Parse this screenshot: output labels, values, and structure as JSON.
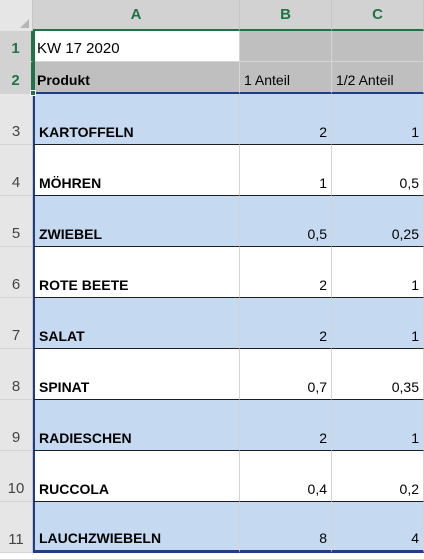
{
  "columns": [
    "A",
    "B",
    "C"
  ],
  "title_cell": "KW 17 2020",
  "header": {
    "produkt": "Produkt",
    "b": "1 Anteil",
    "c": "1/2 Anteil"
  },
  "rows": [
    {
      "num": "3",
      "produkt": "KARTOFFELN",
      "b": "2",
      "c": "1"
    },
    {
      "num": "4",
      "produkt": "MÖHREN",
      "b": "1",
      "c": "0,5"
    },
    {
      "num": "5",
      "produkt": "ZWIEBEL",
      "b": "0,5",
      "c": "0,25"
    },
    {
      "num": "6",
      "produkt": "ROTE BEETE",
      "b": "2",
      "c": "1"
    },
    {
      "num": "7",
      "produkt": "SALAT",
      "b": "2",
      "c": "1"
    },
    {
      "num": "8",
      "produkt": "SPINAT",
      "b": "0,7",
      "c": "0,35"
    },
    {
      "num": "9",
      "produkt": "RADIESCHEN",
      "b": "2",
      "c": "1"
    },
    {
      "num": "10",
      "produkt": "RUCCOLA",
      "b": "0,4",
      "c": "0,2"
    },
    {
      "num": "11",
      "produkt": "LAUCHZWIEBELN",
      "b": "8",
      "c": "4"
    }
  ],
  "row_numbers_top": [
    "1",
    "2"
  ],
  "colors": {
    "band_blue": "#c5d9f1",
    "header_gray": "#bfbfbf",
    "excel_green": "#217346",
    "border_navy": "#1f3c88"
  }
}
